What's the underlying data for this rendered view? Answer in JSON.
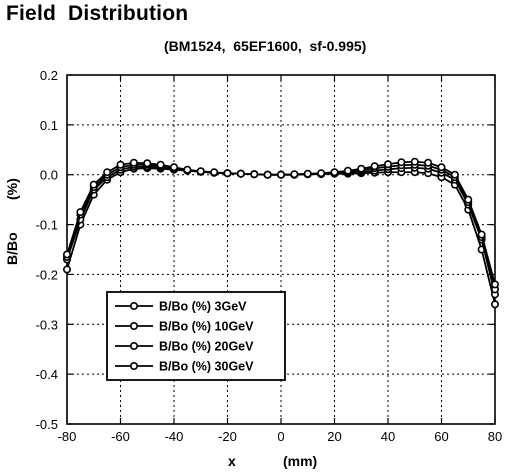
{
  "chart_data": {
    "type": "line",
    "title": "Field Distribution",
    "subtitle": "(BM1524,  65EF1600,  sf-0.995)",
    "xlabel": "x",
    "xunit": "(mm)",
    "ylabel": "B/Bo",
    "yunit": "(%)",
    "xlim": [
      -80,
      80
    ],
    "ylim": [
      -0.5,
      0.2
    ],
    "xticks": [
      "-80",
      "-60",
      "-40",
      "-20",
      "0",
      "20",
      "40",
      "60",
      "80"
    ],
    "yticks": [
      "0.2",
      "0.1",
      "0.0",
      "-0.1",
      "-0.2",
      "-0.3",
      "-0.4",
      "-0.5"
    ],
    "grid": true,
    "legend_position": "lower-left",
    "x": [
      -80,
      -75,
      -70,
      -65,
      -60,
      -55,
      -50,
      -45,
      -40,
      -35,
      -30,
      -25,
      -20,
      -15,
      -10,
      -5,
      0,
      5,
      10,
      15,
      20,
      25,
      30,
      35,
      40,
      45,
      50,
      55,
      60,
      65,
      70,
      75,
      80
    ],
    "series": [
      {
        "name": "B/Bo (%)  3GeV",
        "values": [
          -0.19,
          -0.1,
          -0.04,
          -0.01,
          0.005,
          0.012,
          0.013,
          0.012,
          0.01,
          0.008,
          0.006,
          0.004,
          0.003,
          0.002,
          0.001,
          0.0,
          0.0,
          0.0,
          0.001,
          0.001,
          0.002,
          0.002,
          0.003,
          0.004,
          0.005,
          0.005,
          0.005,
          0.003,
          -0.005,
          -0.02,
          -0.07,
          -0.15,
          -0.26
        ]
      },
      {
        "name": "B/Bo (%)  10GeV",
        "values": [
          -0.17,
          -0.09,
          -0.03,
          -0.005,
          0.01,
          0.016,
          0.016,
          0.014,
          0.011,
          0.008,
          0.006,
          0.004,
          0.003,
          0.002,
          0.001,
          0.0,
          0.0,
          0.0,
          0.001,
          0.002,
          0.003,
          0.004,
          0.006,
          0.008,
          0.011,
          0.013,
          0.014,
          0.012,
          0.004,
          -0.01,
          -0.06,
          -0.13,
          -0.24
        ]
      },
      {
        "name": "B/Bo (%)  20GeV",
        "values": [
          -0.165,
          -0.08,
          -0.025,
          0.0,
          0.015,
          0.02,
          0.02,
          0.017,
          0.013,
          0.009,
          0.006,
          0.004,
          0.003,
          0.002,
          0.001,
          0.0,
          0.0,
          0.0,
          0.001,
          0.002,
          0.004,
          0.006,
          0.009,
          0.013,
          0.016,
          0.019,
          0.02,
          0.018,
          0.01,
          -0.005,
          -0.055,
          -0.125,
          -0.23
        ]
      },
      {
        "name": "B/Bo (%)  30GeV",
        "values": [
          -0.16,
          -0.075,
          -0.02,
          0.005,
          0.02,
          0.024,
          0.023,
          0.02,
          0.015,
          0.01,
          0.007,
          0.005,
          0.003,
          0.002,
          0.001,
          0.0,
          0.0,
          0.001,
          0.002,
          0.003,
          0.005,
          0.008,
          0.012,
          0.017,
          0.021,
          0.025,
          0.026,
          0.024,
          0.015,
          0.0,
          -0.05,
          -0.12,
          -0.22
        ]
      }
    ]
  }
}
